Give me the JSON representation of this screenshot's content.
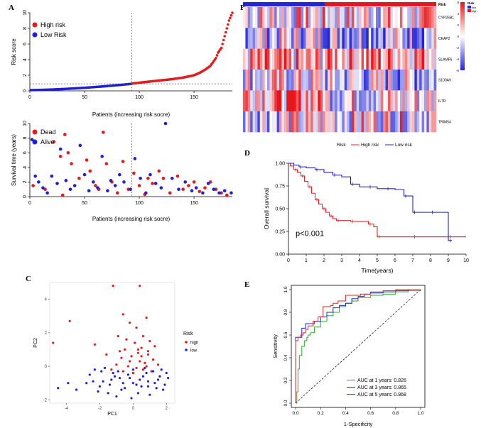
{
  "colors": {
    "high": "#e41a1c",
    "low": "#1f1fd6",
    "red": "#e8242a",
    "blue": "#2323c8",
    "heat_hi": "#e8151b",
    "heat_lo": "#2525d6"
  },
  "chart_data": [
    {
      "panel": "A",
      "type": "scatter",
      "title": "",
      "xlabel": "Patients (increasing risk socre)",
      "ylabel": "Risk score",
      "xlim": [
        0,
        185
      ],
      "ylim": [
        0,
        10
      ],
      "x_ticks": [
        0,
        50,
        100,
        150
      ],
      "y_ticks": [
        0,
        2,
        4,
        6,
        8,
        10
      ],
      "cutoff_index": 93,
      "cutoff_score": 0.9,
      "legend": [
        "High risk",
        "Low Risk"
      ],
      "n_patients": 185,
      "series": [
        {
          "name": "Low Risk",
          "x_range": [
            1,
            93
          ],
          "y_range": [
            0.1,
            0.9
          ]
        },
        {
          "name": "High risk",
          "x_range": [
            94,
            185
          ],
          "x": [
            94,
            110,
            130,
            140,
            150,
            155,
            160,
            165,
            170,
            172,
            175,
            178,
            180,
            182,
            185
          ],
          "y": [
            0.95,
            1.2,
            1.5,
            1.7,
            2.0,
            2.3,
            2.7,
            3.2,
            4.2,
            4.9,
            5.5,
            7.0,
            8.0,
            9.0,
            10.0
          ]
        }
      ]
    },
    {
      "panel": "A-bottom",
      "type": "scatter",
      "xlabel": "Patients (increasing risk socre)",
      "ylabel": "Survival time (years)",
      "xlim": [
        0,
        185
      ],
      "ylim": [
        0,
        10
      ],
      "x_ticks": [
        0,
        50,
        100,
        150
      ],
      "y_ticks": [
        0,
        2,
        4,
        6,
        8,
        10
      ],
      "cutoff_index": 93,
      "legend": [
        "Dead",
        "Alive"
      ],
      "series": [
        {
          "name": "Dead",
          "x": [
            3,
            14,
            22,
            28,
            30,
            32,
            35,
            38,
            45,
            52,
            55,
            60,
            63,
            67,
            70,
            75,
            80,
            85,
            90,
            95,
            100,
            105,
            108,
            112,
            118,
            122,
            128,
            135,
            140,
            145,
            150,
            155,
            160,
            165,
            170,
            175,
            180
          ],
          "y": [
            1.5,
            1.0,
            7.5,
            5.5,
            0.2,
            8.5,
            6.0,
            4.5,
            2.5,
            5.0,
            3.5,
            1.5,
            1.0,
            8.8,
            4.5,
            2.0,
            0.5,
            4.8,
            1.0,
            3.2,
            1.5,
            0.3,
            2.5,
            1.8,
            3.5,
            2.5,
            0.5,
            2.8,
            1.0,
            1.5,
            2.0,
            0.7,
            1.2,
            2.0,
            1.0,
            0.5,
            0.2
          ]
        },
        {
          "name": "Alive",
          "x": [
            2,
            5,
            8,
            12,
            16,
            20,
            25,
            28,
            33,
            37,
            41,
            46,
            50,
            54,
            58,
            62,
            66,
            71,
            74,
            78,
            82,
            86,
            92,
            96,
            101,
            106,
            110,
            115,
            120,
            124,
            130,
            136,
            142,
            148,
            152,
            158,
            163,
            168,
            173,
            178,
            184
          ],
          "y": [
            7.8,
            2.8,
            2.0,
            1.2,
            0.5,
            2.8,
            1.8,
            6.5,
            2.2,
            1.0,
            1.5,
            7.0,
            3.0,
            0.8,
            2.0,
            1.2,
            5.5,
            0.8,
            2.2,
            1.5,
            3.0,
            2.0,
            1.0,
            5.2,
            2.5,
            0.5,
            3.0,
            1.8,
            1.2,
            10.0,
            2.5,
            1.0,
            2.0,
            0.8,
            1.2,
            0.5,
            1.8,
            1.0,
            0.5,
            0.8,
            0.5
          ]
        }
      ]
    },
    {
      "panel": "B",
      "type": "heatmap",
      "rows": [
        "CYP26B1",
        "CKAP2",
        "SLAMF6",
        "S100A9",
        "IL7R",
        "TRIM54"
      ],
      "annotation_title": "Risk",
      "annotation_levels": [
        "low",
        "high"
      ],
      "color_range": [
        -6,
        6
      ],
      "color_ticks": [
        6,
        4,
        2,
        0,
        -2,
        -4,
        -6
      ],
      "row_mean_level": [
        0.1,
        -0.15,
        0.35,
        -0.1,
        0.3,
        0.05
      ],
      "col_trend": [
        0.0,
        -0.05,
        0.15,
        -0.1,
        -0.25,
        0.05
      ],
      "n_columns": 80,
      "low_fraction": 0.43
    },
    {
      "panel": "D",
      "type": "line",
      "xlabel": "Time(years)",
      "ylabel": "Overall survival",
      "xlim": [
        0,
        10
      ],
      "ylim": [
        0,
        1.0
      ],
      "x_ticks": [
        0,
        1,
        2,
        3,
        4,
        5,
        6,
        7,
        8,
        9,
        10
      ],
      "y_ticks": [
        0.0,
        0.25,
        0.5,
        0.75,
        1.0
      ],
      "legend_title": "Risk",
      "legend": [
        "High risk",
        "Low risk"
      ],
      "annotation": "p<0.001",
      "series": [
        {
          "name": "High risk",
          "x": [
            0,
            0.1,
            0.3,
            0.5,
            0.7,
            0.9,
            1.1,
            1.3,
            1.5,
            1.7,
            1.9,
            2.1,
            2.3,
            2.5,
            2.7,
            3.0,
            3.5,
            4.0,
            4.5,
            4.8,
            5.0,
            6.0,
            7.0,
            8.0,
            9.0,
            10.0
          ],
          "y": [
            1.0,
            0.97,
            0.93,
            0.9,
            0.86,
            0.8,
            0.74,
            0.67,
            0.6,
            0.55,
            0.5,
            0.46,
            0.42,
            0.39,
            0.37,
            0.37,
            0.36,
            0.36,
            0.33,
            0.3,
            0.19,
            0.19,
            0.19,
            0.19,
            0.19,
            0.19
          ]
        },
        {
          "name": "Low risk",
          "x": [
            0,
            0.3,
            0.6,
            1.0,
            1.5,
            2.0,
            2.5,
            3.0,
            3.5,
            4.0,
            4.5,
            5.0,
            5.5,
            6.0,
            6.5,
            6.8,
            7.0,
            7.5,
            8.0,
            8.6,
            9.0,
            9.2
          ],
          "y": [
            1.0,
            0.98,
            0.96,
            0.95,
            0.93,
            0.9,
            0.87,
            0.85,
            0.77,
            0.74,
            0.74,
            0.72,
            0.72,
            0.71,
            0.64,
            0.64,
            0.46,
            0.46,
            0.46,
            0.46,
            0.15,
            0.15
          ]
        }
      ]
    },
    {
      "panel": "C",
      "type": "scatter",
      "xlabel": "PC1",
      "ylabel": "PC2",
      "xlim": [
        -5,
        2.5
      ],
      "ylim": [
        -2.2,
        5
      ],
      "x_ticks": [
        -4,
        -2,
        0,
        2
      ],
      "y_ticks": [
        -2,
        0,
        2,
        4
      ],
      "legend_title": "Risk",
      "legend": [
        "high",
        "low"
      ],
      "series": [
        {
          "name": "high",
          "x": [
            -4.8,
            -3.8,
            -1.2,
            -0.6,
            0.4,
            -0.2,
            0.2,
            0.8,
            -0.9,
            -0.4,
            0.1,
            0.6,
            1.0,
            1.3,
            -0.5,
            0.3,
            0.9,
            -1.6,
            -2.3,
            -0.7,
            0.5,
            1.2,
            -0.2,
            0.4,
            0.7,
            -1.0,
            -0.3,
            0.2,
            0.8,
            1.5,
            -0.6,
            0.0,
            0.6,
            1.1,
            -1.3,
            -0.1,
            0.3,
            0.9,
            -0.8,
            0.5
          ],
          "y": [
            1.4,
            2.7,
            4.8,
            3.1,
            4.8,
            2.6,
            2.3,
            2.9,
            1.8,
            1.6,
            1.4,
            1.8,
            1.5,
            1.2,
            1.0,
            1.0,
            0.9,
            0.7,
            1.3,
            0.5,
            0.6,
            0.4,
            0.3,
            0.3,
            0.2,
            0.1,
            0.0,
            -0.1,
            0.0,
            0.1,
            -0.3,
            -0.4,
            -0.2,
            -0.3,
            -0.2,
            0.6,
            0.8,
            0.7,
            0.9,
            1.1
          ]
        },
        {
          "name": "low",
          "x": [
            -4.5,
            -3.9,
            -3.4,
            -2.6,
            -2.3,
            -2.0,
            -1.8,
            -1.5,
            -1.2,
            -1.0,
            -0.8,
            -0.5,
            -0.3,
            0.0,
            0.3,
            0.6,
            0.9,
            1.2,
            1.5,
            1.8,
            2.0,
            -2.4,
            -1.7,
            -1.1,
            -0.6,
            -0.1,
            0.4,
            0.8,
            1.3,
            1.7,
            -2.1,
            -1.4,
            -0.9,
            -0.2,
            0.5,
            1.0,
            1.6,
            -1.9,
            -0.7,
            0.2,
            0.7,
            1.4,
            2.1,
            -2.8,
            -1.3,
            0.0,
            0.9,
            1.9
          ],
          "y": [
            -1.3,
            -1.0,
            -1.4,
            -0.5,
            -0.2,
            -1.2,
            -0.9,
            -1.6,
            -0.4,
            -1.8,
            -0.7,
            -1.3,
            -0.5,
            -1.0,
            -1.6,
            -0.6,
            -1.2,
            -0.3,
            -0.8,
            -1.4,
            -0.4,
            -0.9,
            -0.1,
            -0.6,
            -1.0,
            -1.9,
            -0.8,
            -0.4,
            -1.0,
            -0.2,
            -1.5,
            -1.1,
            -0.3,
            -0.7,
            -1.2,
            -1.7,
            -0.6,
            -0.3,
            -1.4,
            -1.1,
            -0.1,
            -1.3,
            -0.7,
            -1.0,
            -0.8,
            -0.2,
            -0.9,
            -1.1
          ]
        }
      ]
    },
    {
      "panel": "E",
      "type": "line",
      "xlabel": "1-Specificity",
      "ylabel": "Sensitivity",
      "xlim": [
        0,
        1
      ],
      "ylim": [
        0,
        1
      ],
      "x_ticks": [
        0.0,
        0.2,
        0.4,
        0.6,
        0.8,
        1.0
      ],
      "y_ticks": [
        0.0,
        0.2,
        0.4,
        0.6,
        0.8,
        1.0
      ],
      "legend": [
        "AUC at 1 years: 0.826",
        "AUC at 3 years: 0.865",
        "AUC at 5 years: 0.868"
      ],
      "series": [
        {
          "name": "AUC at 1 years: 0.826",
          "x": [
            0,
            0.01,
            0.02,
            0.03,
            0.05,
            0.07,
            0.09,
            0.1,
            0.12,
            0.15,
            0.2,
            0.25,
            0.3,
            0.35,
            0.4,
            0.45,
            0.5,
            0.6,
            0.7,
            0.8,
            0.9,
            1.0
          ],
          "y": [
            0,
            0.1,
            0.3,
            0.42,
            0.5,
            0.55,
            0.58,
            0.6,
            0.62,
            0.67,
            0.72,
            0.77,
            0.8,
            0.85,
            0.88,
            0.9,
            0.93,
            0.95,
            0.96,
            0.98,
            0.99,
            1.0
          ]
        },
        {
          "name": "AUC at 3 years: 0.865",
          "x": [
            0,
            0.0,
            0.03,
            0.05,
            0.07,
            0.08,
            0.1,
            0.15,
            0.2,
            0.25,
            0.3,
            0.35,
            0.4,
            0.45,
            0.5,
            0.55,
            0.6,
            0.7,
            0.8,
            0.9,
            1.0
          ],
          "y": [
            0,
            0.58,
            0.58,
            0.66,
            0.66,
            0.7,
            0.7,
            0.72,
            0.76,
            0.8,
            0.84,
            0.86,
            0.88,
            0.92,
            0.94,
            0.96,
            0.97,
            0.98,
            0.99,
            1.0,
            1.0
          ]
        },
        {
          "name": "AUC at 5 years: 0.868",
          "x": [
            0,
            0.0,
            0.02,
            0.04,
            0.06,
            0.08,
            0.1,
            0.14,
            0.18,
            0.22,
            0.28,
            0.3,
            0.34,
            0.4,
            0.46,
            0.52,
            0.6,
            0.7,
            0.8,
            0.9,
            1.0
          ],
          "y": [
            0,
            0.55,
            0.58,
            0.6,
            0.62,
            0.65,
            0.68,
            0.72,
            0.76,
            0.85,
            0.86,
            0.88,
            0.9,
            0.95,
            0.95,
            0.96,
            0.98,
            0.99,
            1.0,
            1.0,
            1.0
          ]
        }
      ]
    }
  ],
  "labels": {
    "A": "A",
    "B": "B",
    "C": "C",
    "D": "D",
    "E": "E"
  }
}
